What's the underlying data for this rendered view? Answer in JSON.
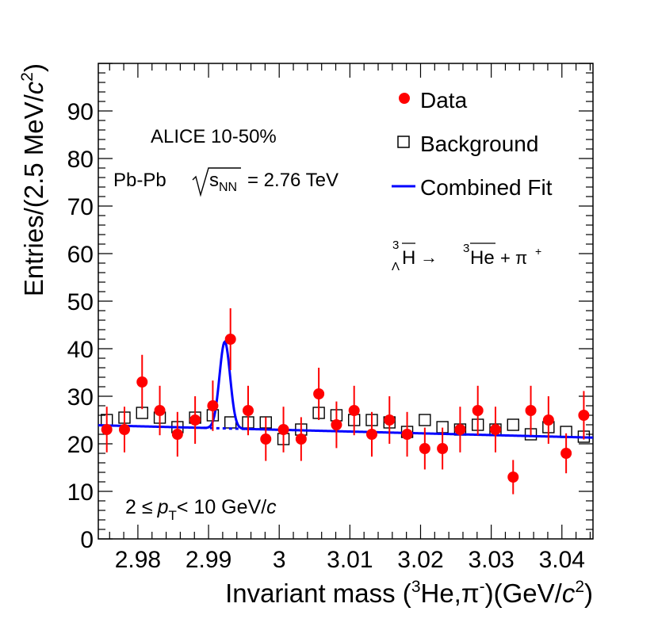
{
  "chart_data": {
    "type": "scatter",
    "title": "",
    "xlabel": {
      "pre": "Invariant mass (",
      "sup1": "3",
      "mid": "He,π",
      "sup2": "-",
      "post": ")(GeV/",
      "ital": "c",
      "sup3": "2",
      "end": ")"
    },
    "ylabel": {
      "pre": "Entries/(2.5 MeV/",
      "ital": "c",
      "sup": "2",
      "end": ")"
    },
    "xlim": [
      2.9744,
      3.0444
    ],
    "ylim": [
      0,
      100
    ],
    "x_ticks": [
      2.98,
      2.99,
      3.0,
      3.01,
      3.02,
      3.03,
      3.04
    ],
    "x_tick_labels": [
      "2.98",
      "2.99",
      "3",
      "3.01",
      "3.02",
      "3.03",
      "3.04"
    ],
    "y_ticks": [
      0,
      10,
      20,
      30,
      40,
      50,
      60,
      70,
      80,
      90
    ],
    "y_tick_labels": [
      "0",
      "10",
      "20",
      "30",
      "40",
      "50",
      "60",
      "70",
      "80",
      "90"
    ],
    "legend": {
      "position": "top-right",
      "entries": [
        {
          "name": "Data",
          "marker": "filled-circle"
        },
        {
          "name": "Background",
          "marker": "open-square"
        },
        {
          "name": "Combined Fit",
          "marker": "line"
        }
      ]
    },
    "annotations": {
      "experiment": "ALICE 10-50%",
      "system_pre": "Pb-Pb",
      "system_s": "s",
      "system_nn": "NN",
      "system_post": "= 2.76 TeV",
      "decay_sup": "3",
      "decay_sub": "Λ",
      "decay_h": "H",
      "decay_arrow": "→",
      "decay_he_sup": "3",
      "decay_he": "He",
      "decay_plus": "+ π",
      "decay_pi_sup": "+",
      "pt_pre": "2 ≤",
      "pt_p": "p",
      "pt_sub": "T",
      "pt_post": "< 10 GeV/",
      "pt_c": "c"
    },
    "series": [
      {
        "name": "Data",
        "x": [
          2.9756,
          2.9781,
          2.9806,
          2.9831,
          2.9856,
          2.9881,
          2.9906,
          2.9931,
          2.9956,
          2.9981,
          3.0006,
          3.0031,
          3.0056,
          3.0081,
          3.0106,
          3.0131,
          3.0156,
          3.0181,
          3.0206,
          3.0231,
          3.0256,
          3.0281,
          3.0306,
          3.0331,
          3.0356,
          3.0381,
          3.0406,
          3.0431
        ],
        "y": [
          23,
          23,
          33,
          27,
          22,
          25,
          28,
          42,
          27,
          21,
          23,
          21,
          30.5,
          24,
          27,
          22,
          25,
          22,
          19,
          19,
          23,
          27,
          23,
          13,
          27,
          25,
          18,
          26
        ],
        "err": [
          4.8,
          4.8,
          5.7,
          5.2,
          4.7,
          5.0,
          5.3,
          6.5,
          5.2,
          4.6,
          4.8,
          4.6,
          5.5,
          4.9,
          5.2,
          4.7,
          5.0,
          4.7,
          4.4,
          4.4,
          4.8,
          5.2,
          4.8,
          3.6,
          5.2,
          5.0,
          4.2,
          5.1
        ]
      },
      {
        "name": "Background",
        "x": [
          2.9756,
          2.9781,
          2.9806,
          2.9831,
          2.9856,
          2.9881,
          2.9906,
          2.9931,
          2.9956,
          2.9981,
          3.0006,
          3.0031,
          3.0056,
          3.0081,
          3.0106,
          3.0131,
          3.0156,
          3.0181,
          3.0206,
          3.0231,
          3.0256,
          3.0281,
          3.0306,
          3.0331,
          3.0356,
          3.0381,
          3.0406,
          3.0431
        ],
        "y": [
          25,
          25.5,
          26.5,
          25.5,
          23.5,
          25.5,
          26,
          24.5,
          24.5,
          24.5,
          21,
          23,
          26.5,
          26,
          25,
          25,
          24.5,
          22.5,
          25,
          23.5,
          23,
          24,
          23,
          24,
          22,
          23.5,
          22.5,
          21.5
        ]
      },
      {
        "name": "Combined Fit",
        "background": {
          "x": [
            2.9744,
            3.0444
          ],
          "y": [
            23.9,
            21.3
          ]
        },
        "peak": {
          "mean": 2.9923,
          "sigma": 0.00075,
          "amplitude": 18.2
        }
      }
    ]
  }
}
